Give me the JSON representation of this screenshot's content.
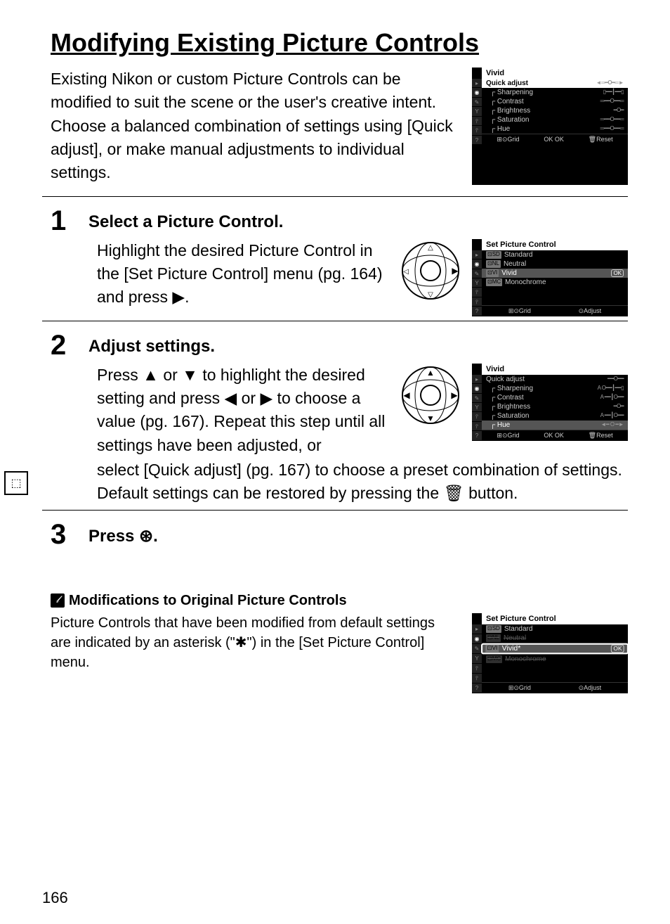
{
  "page_number": "166",
  "title": "Modifying Existing Picture Controls",
  "intro": "Existing Nikon or custom Picture Controls can be modified to suit the scene or the user's creative intent.  Choose a balanced combination of settings using [Quick adjust], or make manual adjustments to individual settings.",
  "lcd1": {
    "title": "Vivid",
    "rows": [
      {
        "label": "Quick adjust",
        "slider": "◄═━O━═►",
        "hl": true
      },
      {
        "label": "Sharpening",
        "slider": "▯━━┃━━▯"
      },
      {
        "label": "Contrast",
        "slider": "═━━O━━═"
      },
      {
        "label": "Brightness",
        "slider": "━O━"
      },
      {
        "label": "Saturation",
        "slider": "═━━O━━═"
      },
      {
        "label": "Hue",
        "slider": "═━━O━━═"
      }
    ],
    "footer": [
      "⊞⊙Grid",
      "OK OK",
      "🗑Reset"
    ]
  },
  "step1": {
    "num": "1",
    "title": "Select a Picture Control.",
    "body": "Highlight the desired Picture Control in the [Set Picture Control] menu (pg. 164) and press ▶."
  },
  "lcd2": {
    "title": "Set Picture Control",
    "items": [
      {
        "code": "⊡SD",
        "label": "Standard"
      },
      {
        "code": "⊡NL",
        "label": "Neutral"
      },
      {
        "code": "⊡VI",
        "label": "Vivid",
        "sel": true,
        "ok": true
      },
      {
        "code": "⊡MC",
        "label": "Monochrome"
      }
    ],
    "footer": [
      "⊞⊙Grid",
      "⊙Adjust"
    ]
  },
  "step2": {
    "num": "2",
    "title": "Adjust settings.",
    "body_top": "Press ▲ or ▼ to highlight the desired setting and press ◀ or ▶ to choose a value (pg. 167). Repeat this step until all settings have been adjusted, or",
    "body_bottom": "select [Quick adjust] (pg. 167) to choose a preset combination of settings.  Default settings can be restored by pressing the 🗑 button."
  },
  "lcd3": {
    "title": "Vivid",
    "rows": [
      {
        "label": "Quick adjust",
        "slider": "━━O━━"
      },
      {
        "label": "Sharpening",
        "slider": "A O━━┃━━▯"
      },
      {
        "label": "Contrast",
        "slider": "A ━━┃O━━"
      },
      {
        "label": "Brightness",
        "slider": "━O━"
      },
      {
        "label": "Saturation",
        "slider": "A ━━┃O━━"
      },
      {
        "label": "Hue",
        "slider": "◄━  O  ━►",
        "sel": true
      }
    ],
    "footer": [
      "⊞⊙Grid",
      "OK OK",
      "🗑Reset"
    ]
  },
  "step3": {
    "num": "3",
    "title": "Press ⊛."
  },
  "note": {
    "title": "Modifications to Original Picture Controls",
    "body": "Picture Controls that have been modified from default settings are indicated by an asterisk (\"✱\") in the [Set Picture Control] menu."
  },
  "lcd4": {
    "title": "Set Picture Control",
    "items": [
      {
        "code": "⊡SD",
        "label": "Standard"
      },
      {
        "code": "⊡NL",
        "label": "Neutral",
        "dim": true
      },
      {
        "code": "⊡VI",
        "label": "Vivid*",
        "zoom": true,
        "ok": true
      },
      {
        "code": "⊡MC",
        "label": "Monochrome",
        "dim": true
      }
    ],
    "footer": [
      "⊞⊙Grid",
      "⊙Adjust"
    ]
  }
}
